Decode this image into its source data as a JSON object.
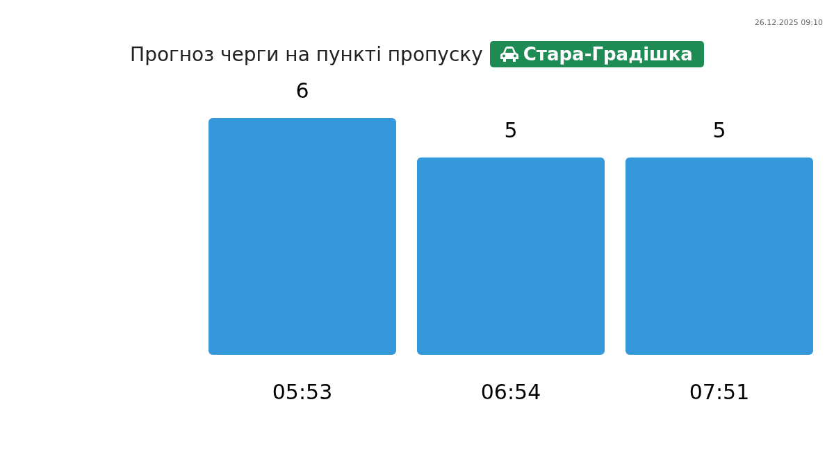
{
  "chart_data": {
    "type": "bar",
    "title": "Прогноз черги на пункті пропуску",
    "subtitle": "Стара-Градішка",
    "annotations": [
      "26.12.2025 09:10"
    ],
    "categories": [
      "05:53",
      "06:54",
      "07:51"
    ],
    "values": [
      6,
      5,
      5
    ],
    "color": "#3498db",
    "data_labels": true
  }
}
